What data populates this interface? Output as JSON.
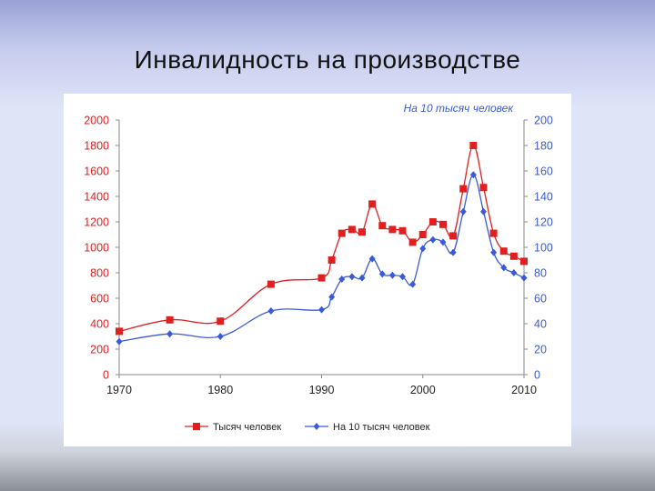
{
  "slide": {
    "title": "Инвалидность на производстве"
  },
  "colors": {
    "series_red": "#e02020",
    "series_blue": "#3b5bd6",
    "axis_left": "#e02020",
    "axis_right": "#3b5bd6"
  },
  "chart_data": {
    "type": "line",
    "title": "",
    "right_axis_title": "На 10 тысяч человек",
    "xlim": [
      1970,
      2010
    ],
    "x_ticks": [
      "1970",
      "1980",
      "1990",
      "2000",
      "2010"
    ],
    "y_left": {
      "ylim": [
        0,
        2000
      ],
      "ticks": [
        "0",
        "200",
        "400",
        "600",
        "800",
        "1000",
        "1200",
        "1400",
        "1600",
        "1800",
        "2000"
      ]
    },
    "y_right": {
      "ylim": [
        0,
        200
      ],
      "ticks": [
        "0",
        "20",
        "40",
        "60",
        "80",
        "100",
        "120",
        "140",
        "160",
        "180",
        "200"
      ]
    },
    "grid": false,
    "legend_position": "bottom",
    "series": [
      {
        "name": "Тысяч человек",
        "axis": "left",
        "color": "#e02020",
        "marker": "square",
        "x": [
          1970,
          1975,
          1980,
          1985,
          1990,
          1991,
          1992,
          1993,
          1994,
          1995,
          1996,
          1997,
          1998,
          1999,
          2000,
          2001,
          2002,
          2003,
          2004,
          2005,
          2006,
          2007,
          2008,
          2009,
          2010
        ],
        "y": [
          340,
          430,
          420,
          710,
          760,
          900,
          1110,
          1140,
          1120,
          1340,
          1170,
          1140,
          1130,
          1040,
          1100,
          1200,
          1180,
          1090,
          1460,
          1800,
          1470,
          1110,
          970,
          930,
          890
        ]
      },
      {
        "name": "На 10 тысяч человек",
        "axis": "right",
        "color": "#3b5bd6",
        "marker": "diamond",
        "x": [
          1970,
          1975,
          1980,
          1985,
          1990,
          1991,
          1992,
          1993,
          1994,
          1995,
          1996,
          1997,
          1998,
          1999,
          2000,
          2001,
          2002,
          2003,
          2004,
          2005,
          2006,
          2007,
          2008,
          2009,
          2010
        ],
        "y": [
          26,
          32,
          30,
          50,
          51,
          61,
          75,
          77,
          76,
          91,
          79,
          78,
          77,
          71,
          99,
          106,
          104,
          96,
          128,
          157,
          128,
          96,
          84,
          80,
          76
        ]
      }
    ]
  }
}
